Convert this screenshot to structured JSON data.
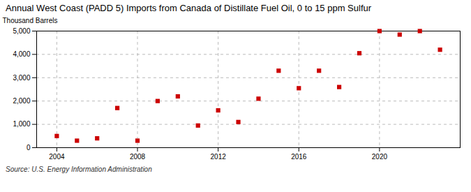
{
  "chart_data": {
    "type": "scatter",
    "title": "Annual West Coast (PADD 5) Imports from Canada of Distillate Fuel Oil, 0 to 15 ppm Sulfur",
    "ylabel": "Thousand Barrels",
    "caption": "Source: U.S. Energy Information Administration",
    "x": [
      2004,
      2005,
      2006,
      2007,
      2008,
      2009,
      2010,
      2011,
      2012,
      2013,
      2014,
      2015,
      2016,
      2017,
      2018,
      2019,
      2020,
      2021,
      2022,
      2023
    ],
    "values": [
      500,
      300,
      400,
      1700,
      300,
      2000,
      2200,
      950,
      1600,
      1100,
      2100,
      3300,
      2550,
      3300,
      2600,
      4050,
      5000,
      4850,
      5000,
      4200
    ],
    "color": "#cc0000",
    "marker": "square",
    "xlim": [
      2003,
      2024
    ],
    "xticks": [
      2004,
      2008,
      2012,
      2016,
      2020
    ],
    "ylim": [
      0,
      5000
    ],
    "yticks": [
      0,
      {
        "value": 1000,
        "label": "1,000"
      },
      {
        "value": 2000,
        "label": "2,000"
      },
      {
        "value": 3000,
        "label": "3,000"
      },
      {
        "value": 4000,
        "label": "4,000"
      },
      {
        "value": 5000,
        "label": "5,000"
      }
    ],
    "grid": true
  }
}
